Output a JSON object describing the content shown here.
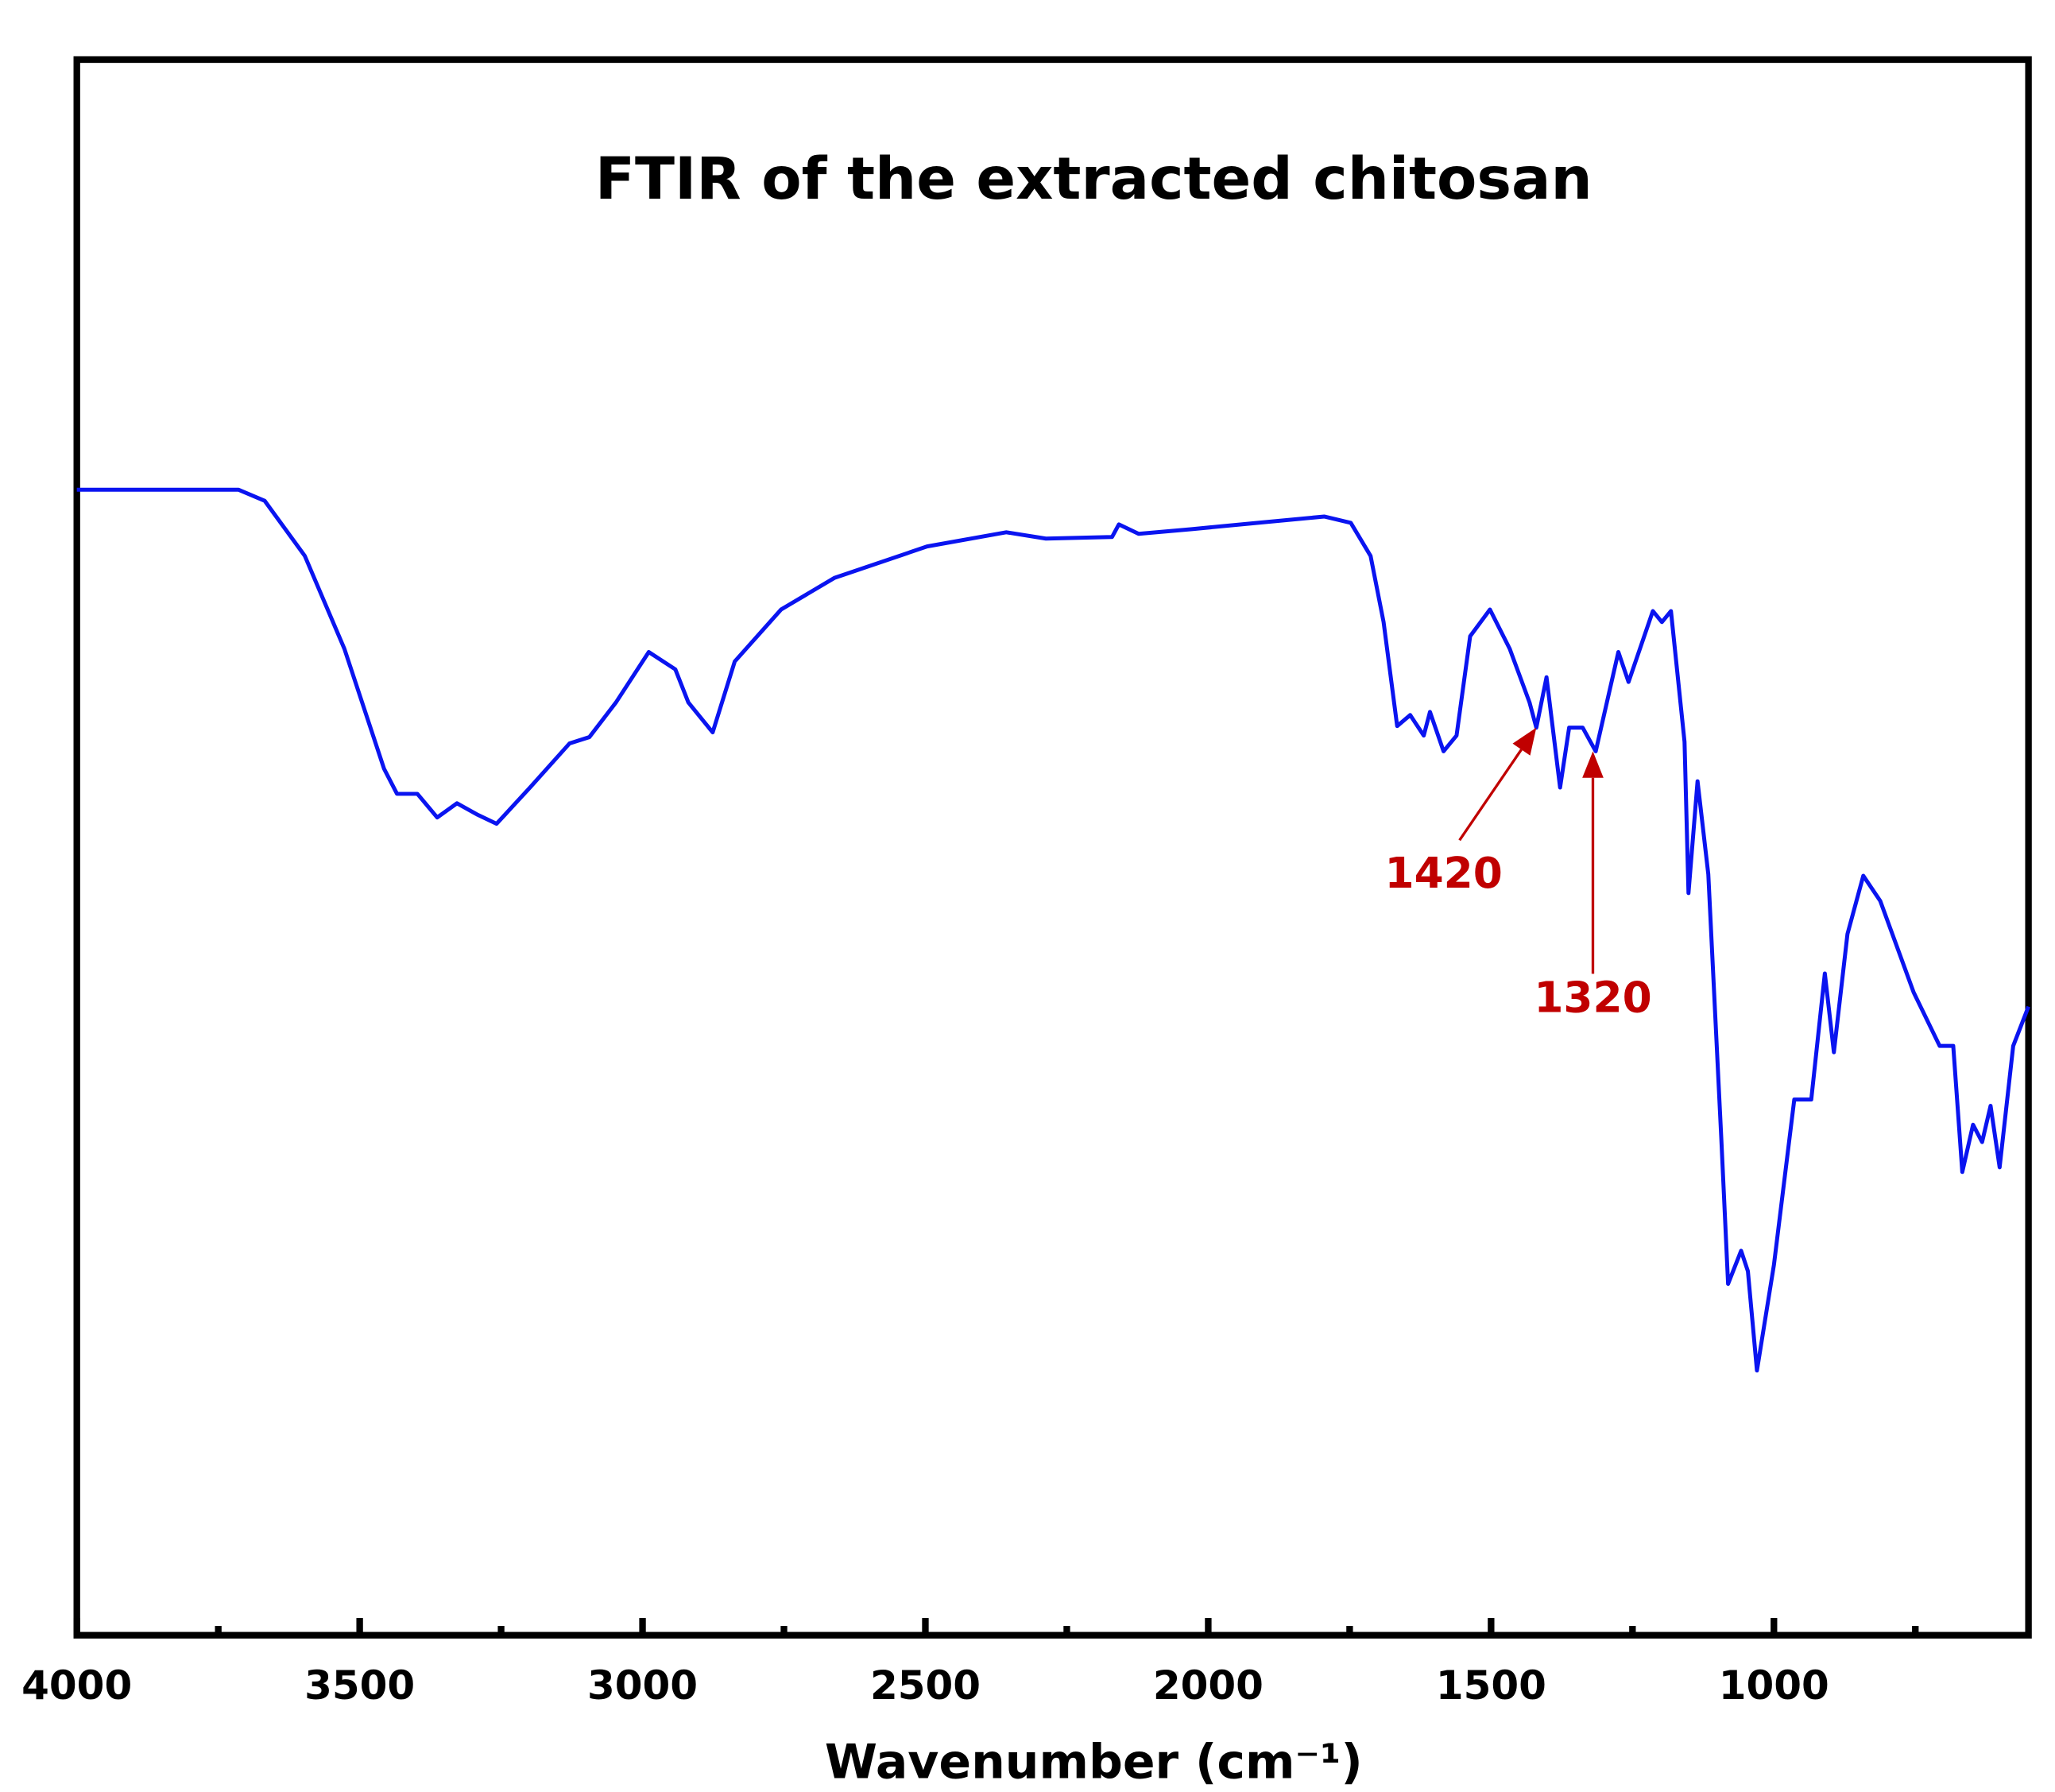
{
  "chart_data": {
    "type": "line",
    "title": "FTIR of the extracted chitosan",
    "x_label": "Wavenumber (cm⁻¹)",
    "xlim": [
      4000,
      550
    ],
    "xticks": [
      4000,
      3500,
      3000,
      2500,
      2000,
      1500,
      1000
    ],
    "minor_xticks": [
      3750,
      3250,
      2750,
      2250,
      1750,
      1250,
      750
    ],
    "ylim": [
      0,
      100
    ],
    "color": "#0a14f0",
    "x": [
      4000,
      3714,
      3668,
      3597,
      3527,
      3457,
      3434,
      3398,
      3363,
      3328,
      3293,
      3258,
      3199,
      3129,
      3094,
      3047,
      2989,
      2942,
      2919,
      2876,
      2837,
      2755,
      2661,
      2497,
      2357,
      2287,
      2170,
      2158,
      2123,
      2029,
      1912,
      1795,
      1748,
      1713,
      1690,
      1666,
      1643,
      1619,
      1608,
      1584,
      1561,
      1537,
      1502,
      1467,
      1432,
      1420,
      1402,
      1378,
      1362,
      1338,
      1315,
      1275,
      1257,
      1214,
      1198,
      1182,
      1158,
      1151,
      1135,
      1116,
      1093,
      1081,
      1058,
      1046,
      1030,
      1000,
      964,
      934,
      910,
      894,
      870,
      842,
      812,
      753,
      707,
      683,
      667,
      648,
      632,
      617,
      601,
      577,
      550
    ],
    "values": [
      72.7,
      72.7,
      72.0,
      68.5,
      62.6,
      55.0,
      53.4,
      53.4,
      51.9,
      52.8,
      52.1,
      51.5,
      53.8,
      56.6,
      57.0,
      59.2,
      62.4,
      61.3,
      59.2,
      57.3,
      61.8,
      65.1,
      67.1,
      69.1,
      70.0,
      69.6,
      69.7,
      70.5,
      69.9,
      70.2,
      70.6,
      71.0,
      70.6,
      68.5,
      64.3,
      57.7,
      58.4,
      57.1,
      58.6,
      56.1,
      57.1,
      63.4,
      65.1,
      62.6,
      59.2,
      57.6,
      60.8,
      53.8,
      57.6,
      57.6,
      56.1,
      62.4,
      60.5,
      65.0,
      64.3,
      65.0,
      56.7,
      47.1,
      54.2,
      48.3,
      31.5,
      22.3,
      24.4,
      23.1,
      16.8,
      23.5,
      34.0,
      34.0,
      42.0,
      37.0,
      44.5,
      48.2,
      46.6,
      40.8,
      37.4,
      37.4,
      29.4,
      32.4,
      31.3,
      33.6,
      29.7,
      37.4,
      39.9
    ],
    "annotations": [
      {
        "text": "1420",
        "x": 1420,
        "y": 57.6,
        "color": "#c00000"
      },
      {
        "text": "1320",
        "x": 1320,
        "y": 56.1,
        "color": "#c00000"
      }
    ]
  }
}
